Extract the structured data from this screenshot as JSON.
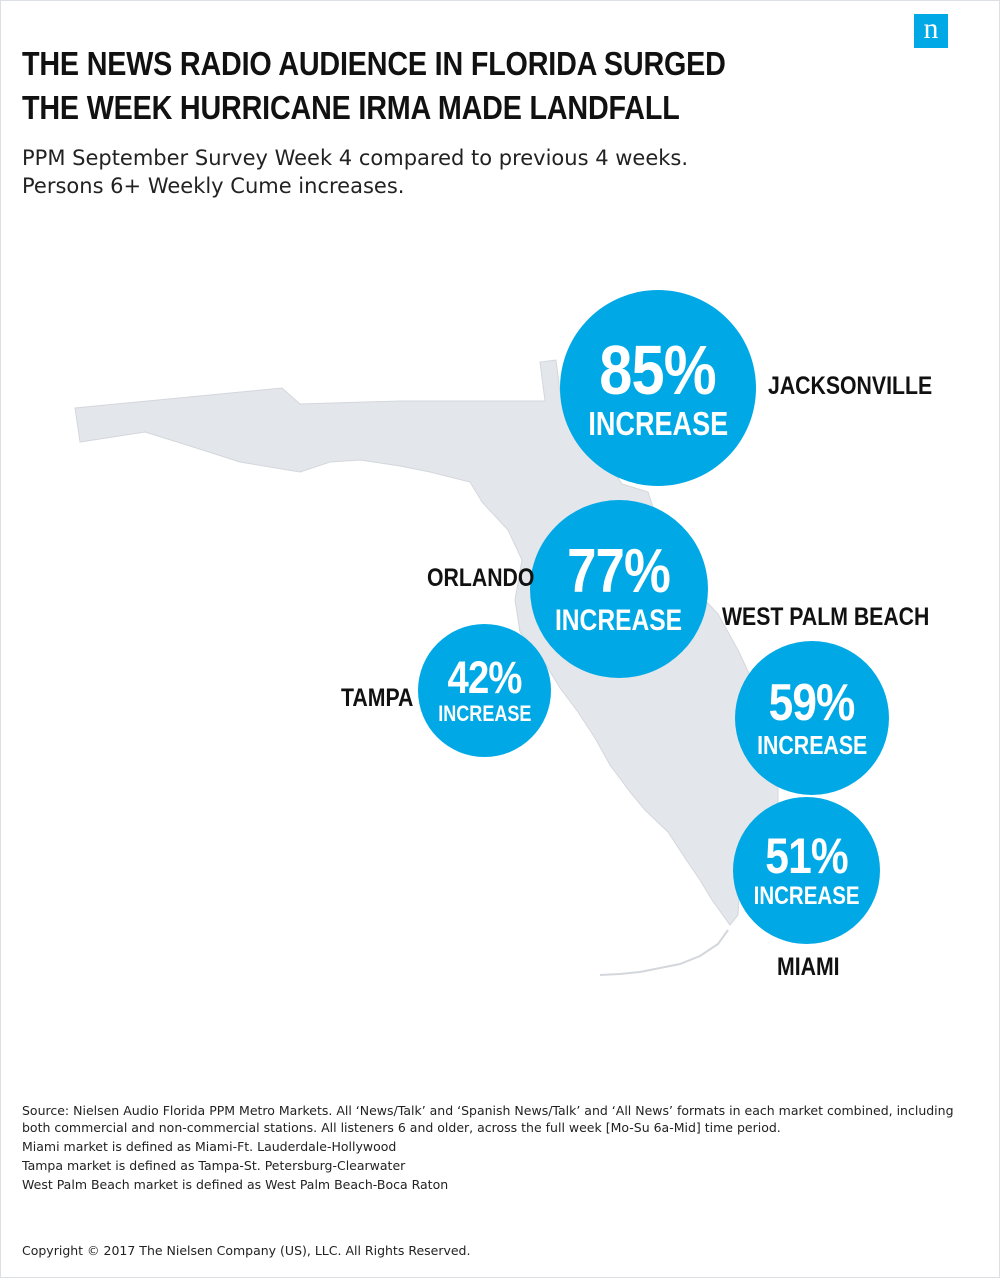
{
  "logo": {
    "letter": "n",
    "color": "#00a9e6"
  },
  "title": {
    "line1": "THE NEWS RADIO AUDIENCE IN FLORIDA SURGED",
    "line2": "THE WEEK HURRICANE IRMA MADE LANDFALL"
  },
  "subtitle": {
    "line1": "PPM September Survey Week 4 compared to previous 4 weeks.",
    "line2": "Persons 6+ Weekly Cume increases."
  },
  "map": {
    "region": "Florida",
    "land_color": "#e3e6ea",
    "bubble_color": "#00a9e6"
  },
  "markets": {
    "jacksonville": {
      "city": "JACKSONVILLE",
      "value": "85%",
      "label": "INCREASE"
    },
    "orlando": {
      "city": "ORLANDO",
      "value": "77%",
      "label": "INCREASE"
    },
    "tampa": {
      "city": "TAMPA",
      "value": "42%",
      "label": "INCREASE"
    },
    "west_palm_beach": {
      "city": "WEST PALM BEACH",
      "value": "59%",
      "label": "INCREASE"
    },
    "miami": {
      "city": "MIAMI",
      "value": "51%",
      "label": "INCREASE"
    }
  },
  "notes": {
    "source": "Source: Nielsen Audio Florida PPM Metro Markets. All ‘News/Talk’ and ‘Spanish News/Talk’ and ‘All News’ formats in each market combined, including both commercial and non-commercial stations. All listeners 6 and older, across the full week [Mo-Su 6a-Mid] time period.",
    "miami": "Miami market is defined as Miami-Ft. Lauderdale-Hollywood",
    "tampa": "Tampa market is defined as Tampa-St. Petersburg-Clearwater",
    "wpb": "West Palm Beach market is defined as West Palm Beach-Boca Raton"
  },
  "copyright": "Copyright © 2017 The Nielsen Company (US), LLC. All Rights Reserved."
}
